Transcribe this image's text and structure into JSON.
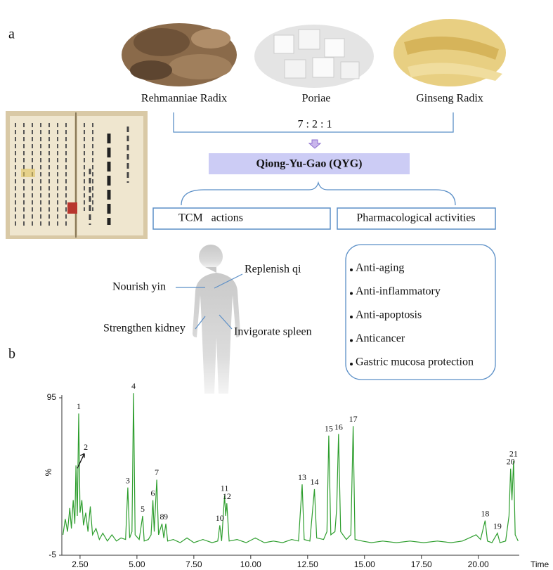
{
  "panels": [
    "a",
    "b"
  ],
  "herbs": [
    "Rehmanniae Radix",
    "Poriae",
    "Ginseng Radix"
  ],
  "ratio": "7 : 2 : 1",
  "formula": "Qiong-Yu-Gao (QYG)",
  "groups": [
    "TCM   actions",
    "Pharmacological activities"
  ],
  "tcm_actions": [
    "Nourish yin",
    "Replenish qi",
    "Strengthen kidney",
    "Invigorate spleen"
  ],
  "activities": [
    "Anti-aging",
    "Anti-inflammatory",
    "Anti-apoptosis",
    "Anticancer",
    "Gastric mucosa protection"
  ],
  "chart_data": {
    "type": "line",
    "color": "#2e9e2e",
    "xlabel": "Time",
    "ylabel": "%",
    "xlim": [
      1.7,
      21.8
    ],
    "ylim": [
      -5,
      95
    ],
    "xticks": [
      {
        "value": 2.5,
        "label": "2.50"
      },
      {
        "value": 5,
        "label": "5.00"
      },
      {
        "value": 7.5,
        "label": "7.50"
      },
      {
        "value": 10,
        "label": "10.00"
      },
      {
        "value": 12.5,
        "label": "12.50"
      },
      {
        "value": 15,
        "label": "15.00"
      },
      {
        "value": 17.5,
        "label": "17.50"
      },
      {
        "value": 20,
        "label": "20.00"
      }
    ],
    "yticks": [
      -5,
      95
    ],
    "x": [
      1.75,
      1.85,
      1.95,
      2.05,
      2.12,
      2.2,
      2.27,
      2.32,
      2.38,
      2.44,
      2.5,
      2.58,
      2.65,
      2.75,
      2.85,
      2.95,
      3.05,
      3.2,
      3.35,
      3.5,
      3.7,
      3.9,
      4.1,
      4.3,
      4.5,
      4.6,
      4.68,
      4.78,
      4.85,
      4.92,
      5.1,
      5.25,
      5.32,
      5.5,
      5.62,
      5.7,
      5.76,
      5.87,
      5.95,
      6.1,
      6.18,
      6.27,
      6.35,
      6.6,
      6.9,
      7.2,
      7.5,
      7.9,
      8.3,
      8.55,
      8.64,
      8.72,
      8.85,
      8.9,
      8.95,
      9.05,
      9.4,
      9.8,
      10.2,
      10.6,
      11.0,
      11.4,
      11.8,
      12.1,
      12.26,
      12.35,
      12.6,
      12.8,
      12.9,
      13.2,
      13.35,
      13.43,
      13.52,
      13.7,
      13.78,
      13.86,
      13.95,
      14.2,
      14.4,
      14.5,
      14.58,
      14.9,
      15.3,
      15.8,
      16.4,
      17.0,
      17.6,
      18.2,
      18.8,
      19.3,
      19.6,
      19.9,
      20.1,
      20.3,
      20.4,
      20.6,
      20.84,
      20.95,
      21.2,
      21.35,
      21.42,
      21.48,
      21.55,
      21.62,
      21.75
    ],
    "values": [
      8,
      18,
      10,
      25,
      12,
      30,
      15,
      52,
      20,
      85,
      22,
      30,
      14,
      22,
      10,
      26,
      8,
      12,
      5,
      9,
      4,
      8,
      4,
      6,
      5,
      38,
      6,
      10,
      98,
      8,
      5,
      20,
      4,
      5,
      8,
      30,
      10,
      43,
      8,
      15,
      6,
      15,
      4,
      5,
      3,
      6,
      3,
      5,
      3,
      4,
      14,
      4,
      33,
      20,
      28,
      4,
      5,
      3,
      6,
      3,
      4,
      3,
      5,
      4,
      40,
      5,
      4,
      37,
      6,
      5,
      10,
      71,
      8,
      10,
      25,
      72,
      10,
      5,
      8,
      77,
      5,
      4,
      3,
      4,
      3,
      4,
      3,
      4,
      3,
      4,
      6,
      8,
      5,
      17,
      4,
      3,
      9,
      3,
      4,
      20,
      50,
      30,
      55,
      8,
      4
    ],
    "peaks": [
      {
        "label": "1",
        "x": 2.44,
        "y": 85
      },
      {
        "label": "2",
        "x": 2.32,
        "y": 52
      },
      {
        "label": "3",
        "x": 4.6,
        "y": 38
      },
      {
        "label": "4",
        "x": 4.85,
        "y": 98
      },
      {
        "label": "5",
        "x": 5.25,
        "y": 20
      },
      {
        "label": "6",
        "x": 5.7,
        "y": 30
      },
      {
        "label": "7",
        "x": 5.87,
        "y": 43
      },
      {
        "label": "8",
        "x": 6.1,
        "y": 15
      },
      {
        "label": "9",
        "x": 6.27,
        "y": 15
      },
      {
        "label": "10",
        "x": 8.64,
        "y": 14
      },
      {
        "label": "11",
        "x": 8.85,
        "y": 33
      },
      {
        "label": "12",
        "x": 8.95,
        "y": 28
      },
      {
        "label": "13",
        "x": 12.26,
        "y": 40
      },
      {
        "label": "14",
        "x": 12.8,
        "y": 37
      },
      {
        "label": "15",
        "x": 13.43,
        "y": 71
      },
      {
        "label": "16",
        "x": 13.86,
        "y": 72
      },
      {
        "label": "17",
        "x": 14.5,
        "y": 77
      },
      {
        "label": "18",
        "x": 20.3,
        "y": 17
      },
      {
        "label": "19",
        "x": 20.84,
        "y": 9
      },
      {
        "label": "20",
        "x": 21.42,
        "y": 50
      },
      {
        "label": "21",
        "x": 21.55,
        "y": 55
      }
    ]
  }
}
